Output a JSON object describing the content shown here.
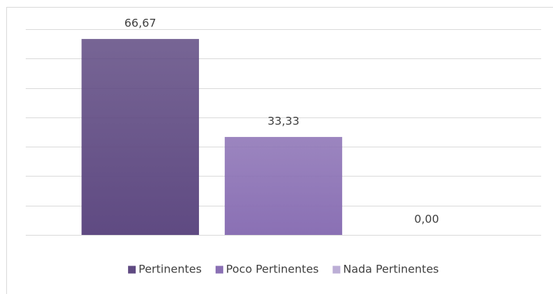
{
  "chart_data": {
    "type": "bar",
    "categories": [
      null
    ],
    "series": [
      {
        "name": "Pertinentes",
        "color": "#5f4a82",
        "values": [
          66.67
        ],
        "value_labels": [
          "66,67"
        ]
      },
      {
        "name": "Poco Pertinentes",
        "color": "#8a70b4",
        "values": [
          33.33
        ],
        "value_labels": [
          "33,33"
        ]
      },
      {
        "name": "Nada Pertinentes",
        "color": "#bcaed6",
        "values": [
          0.0
        ],
        "value_labels": [
          "0,00"
        ]
      }
    ],
    "ylim": [
      0,
      70
    ],
    "yticks": [
      0,
      10,
      20,
      30,
      40,
      50,
      60,
      70
    ],
    "grid": true,
    "legend": "bottom"
  }
}
